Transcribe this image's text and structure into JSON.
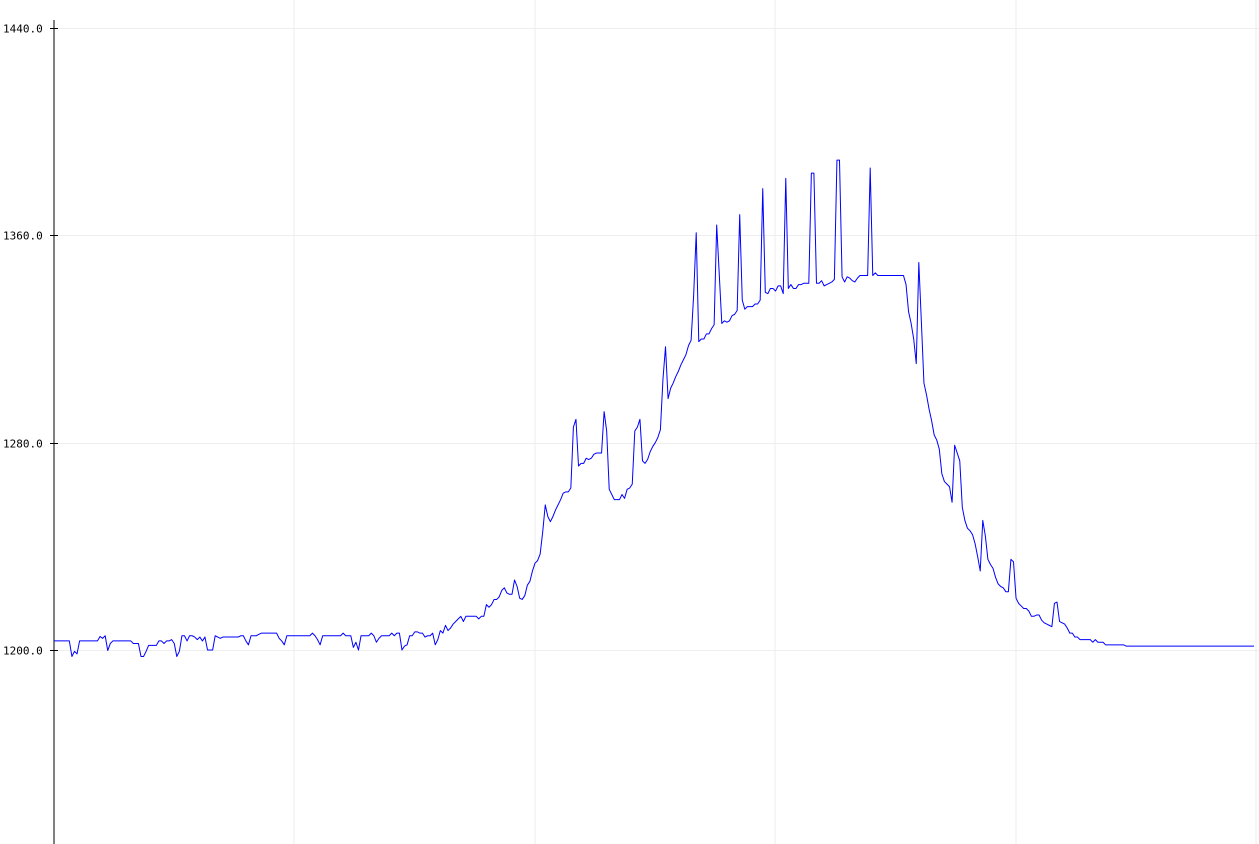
{
  "chart_data": {
    "type": "line",
    "title": "",
    "xlabel": "",
    "ylabel": "",
    "ylim": [
      1125,
      1440
    ],
    "yticks": [
      "1440.0",
      "1360.0",
      "1280.0",
      "1200.0"
    ],
    "grid": true,
    "colors": {
      "line": "#0000ff",
      "grid": "#eeeeee",
      "axis": "#000000"
    },
    "series": [
      {
        "values": [
          1203.5,
          1203.5,
          1203.5,
          1203.5,
          1203.5,
          1203.5,
          1203.5,
          1197.5,
          1199.5,
          1198.5,
          1203.5,
          1203.5,
          1203.5,
          1203.5,
          1203.5,
          1203.5,
          1203.5,
          1203.5,
          1205.2,
          1204.5,
          1205.5,
          1199.8,
          1202.5,
          1203.5,
          1203.5,
          1203.5,
          1203.5,
          1203.5,
          1203.5,
          1203.5,
          1203.5,
          1202.5,
          1202.5,
          1202.5,
          1197.5,
          1197.5,
          1199.5,
          1201.8,
          1201.8,
          1201.8,
          1201.8,
          1203.5,
          1203.5,
          1202.5,
          1203.5,
          1203.5,
          1204.0,
          1202.5,
          1197.5,
          1199.5,
          1205.5,
          1205.5,
          1203.5,
          1205.5,
          1205.5,
          1205.0,
          1204.0,
          1205.0,
          1203.5,
          1205.0,
          1200.0,
          1200.0,
          1200.0,
          1205.5,
          1205.0,
          1204.5,
          1205.0,
          1205.0,
          1205.0,
          1205.0,
          1205.0,
          1205.0,
          1205.0,
          1205.5,
          1205.5,
          1203.5,
          1202.0,
          1205.5,
          1205.5,
          1205.5,
          1206.0,
          1206.5,
          1206.5,
          1206.5,
          1206.5,
          1206.5,
          1206.5,
          1206.5,
          1204.5,
          1203.5,
          1202.0,
          1205.5,
          1205.5,
          1205.5,
          1205.5,
          1205.5,
          1205.5,
          1205.5,
          1205.5,
          1205.5,
          1205.5,
          1206.5,
          1205.5,
          1204.0,
          1202.0,
          1205.5,
          1205.5,
          1205.5,
          1205.5,
          1205.5,
          1205.5,
          1205.5,
          1205.5,
          1206.5,
          1205.5,
          1205.5,
          1205.5,
          1201.0,
          1203.0,
          1200.0,
          1205.5,
          1205.5,
          1205.5,
          1205.5,
          1206.5,
          1205.5,
          1203.0,
          1204.5,
          1205.5,
          1205.5,
          1205.5,
          1205.5,
          1206.5,
          1205.5,
          1206.5,
          1206.5,
          1200.0,
          1201.5,
          1202.0,
          1205.5,
          1205.5,
          1207.0,
          1207.0,
          1206.5,
          1206.5,
          1205.0,
          1205.5,
          1205.5,
          1206.5,
          1202.0,
          1204.0,
          1207.5,
          1206.5,
          1209.5,
          1207.5,
          1208.5,
          1210.0,
          1211.0,
          1212.0,
          1213.0,
          1211.0,
          1213.0,
          1213.0,
          1213.0,
          1213.0,
          1213.0,
          1212.0,
          1213.0,
          1213.0,
          1217.5,
          1216.5,
          1217.5,
          1219.5,
          1219.5,
          1220.5,
          1223.0,
          1224.0,
          1222.0,
          1221.5,
          1221.5,
          1227.0,
          1224.5,
          1220.0,
          1219.5,
          1221.0,
          1225.0,
          1226.5,
          1230.5,
          1233.5,
          1234.5,
          1237.0,
          1245.5,
          1256.0,
          1251.5,
          1249.5,
          1251.5,
          1254.0,
          1256.0,
          1258.0,
          1260.5,
          1261.0,
          1261.0,
          1262.5,
          1286.0,
          1289.0,
          1271.0,
          1272.0,
          1272.0,
          1274.0,
          1273.5,
          1274.0,
          1275.5,
          1276.0,
          1276.0,
          1276.0,
          1292.0,
          1284.5,
          1262.0,
          1260.0,
          1258.0,
          1258.0,
          1258.0,
          1260.0,
          1258.5,
          1262.0,
          1262.5,
          1264.0,
          1284.5,
          1286.0,
          1289.0,
          1273.0,
          1272.0,
          1273.5,
          1276.5,
          1278.5,
          1280.0,
          1282.0,
          1285.0,
          1304.5,
          1317.0,
          1297.0,
          1301.0,
          1303.0,
          1305.5,
          1307.5,
          1310.0,
          1312.0,
          1314.0,
          1317.5,
          1319.5,
          1337.0,
          1361.0,
          1319.0,
          1320.0,
          1320.0,
          1322.0,
          1322.0,
          1324.0,
          1325.5,
          1364.0,
          1345.0,
          1326.0,
          1327.0,
          1326.5,
          1327.0,
          1329.0,
          1329.5,
          1331.0,
          1368.0,
          1335.0,
          1331.5,
          1332.5,
          1332.5,
          1332.5,
          1333.5,
          1333.5,
          1335.0,
          1378.0,
          1338.0,
          1337.5,
          1339.5,
          1339.5,
          1338.5,
          1340.5,
          1340.5,
          1337.5,
          1382.0,
          1339.5,
          1341.0,
          1339.5,
          1339.5,
          1341.0,
          1341.0,
          1341.5,
          1341.5,
          1341.5,
          1384.0,
          1384.0,
          1341.5,
          1341.5,
          1342.5,
          1340.5,
          1341.0,
          1341.5,
          1342.0,
          1343.0,
          1389.0,
          1389.0,
          1344.0,
          1342.0,
          1344.0,
          1343.5,
          1342.5,
          1342.0,
          1343.5,
          1344.5,
          1344.5,
          1344.5,
          1344.5,
          1386.0,
          1344.5,
          1345.5,
          1344.5,
          1344.5,
          1344.5,
          1344.5,
          1344.5,
          1344.5,
          1344.5,
          1344.5,
          1344.5,
          1344.5,
          1344.5,
          1341.0,
          1330.5,
          1326.0,
          1320.0,
          1310.5,
          1349.5,
          1326.5,
          1303.0,
          1298.5,
          1293.0,
          1288.5,
          1283.0,
          1281.0,
          1277.5,
          1268.0,
          1265.0,
          1264.0,
          1263.0,
          1257.0,
          1279.0,
          1276.0,
          1273.0,
          1255.0,
          1250.0,
          1247.0,
          1246.0,
          1244.5,
          1241.0,
          1236.0,
          1230.5,
          1250.0,
          1244.0,
          1235.0,
          1233.0,
          1231.5,
          1228.0,
          1225.5,
          1224.5,
          1224.0,
          1222.5,
          1222.5,
          1235.0,
          1234.0,
          1220.0,
          1218.0,
          1217.0,
          1216.0,
          1216.0,
          1215.0,
          1213.0,
          1213.0,
          1213.5,
          1213.5,
          1211.5,
          1210.5,
          1210.0,
          1209.5,
          1209.0,
          1218.0,
          1218.5,
          1211.0,
          1210.5,
          1210.0,
          1208.5,
          1206.5,
          1206.5,
          1205.0,
          1205.0,
          1204.0,
          1204.0,
          1204.0,
          1204.0,
          1204.0,
          1203.0,
          1204.0,
          1203.0,
          1203.0,
          1203.0,
          1202.0,
          1202.0,
          1202.0,
          1202.0,
          1202.0,
          1202.0,
          1202.0,
          1202.0,
          1201.5,
          1201.5,
          1201.5,
          1201.5,
          1201.5,
          1201.5,
          1201.5,
          1201.5,
          1201.5,
          1201.5,
          1201.5,
          1201.5,
          1201.5,
          1201.5,
          1201.5,
          1201.5,
          1201.5,
          1201.5,
          1201.5,
          1201.5,
          1201.5,
          1201.5,
          1201.5,
          1201.5,
          1201.5,
          1201.5,
          1201.5,
          1201.5,
          1201.5,
          1201.5,
          1201.5,
          1201.5,
          1201.5,
          1201.5,
          1201.5,
          1201.5,
          1201.5,
          1201.5,
          1201.5,
          1201.5,
          1201.5,
          1201.5,
          1201.5,
          1201.5,
          1201.5,
          1201.5,
          1201.5,
          1201.5,
          1201.5,
          1201.5,
          1201.5
        ]
      }
    ]
  }
}
